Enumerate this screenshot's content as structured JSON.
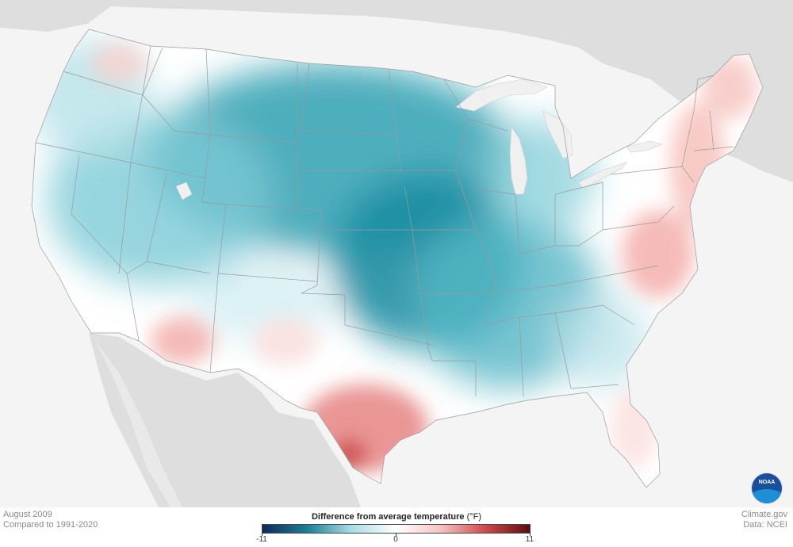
{
  "map": {
    "region": "Contiguous United States",
    "colors": {
      "ocean": "#f4f4f4",
      "land_outside": "#dedede",
      "great_lakes": "#f0f0f0",
      "cool_strong": "#1f8ea0",
      "cool_light": "#a9dbe3",
      "neutral": "#ffffff",
      "warm_light": "#f7cfcc",
      "warm_strong": "#d9585a"
    }
  },
  "footer": {
    "period": "August 2009",
    "baseline": "Compared to 1991-2020",
    "credit_site": "Climate.gov",
    "credit_data": "Data: NCEI"
  },
  "legend": {
    "title": "Difference from average temperature",
    "unit": "(°F)",
    "min_label": "-11",
    "mid_label": "0",
    "max_label": "11",
    "range": [
      -11,
      11
    ],
    "colors": [
      "#0d2a5c",
      "#1a7f95",
      "#a9dde5",
      "#ffffff",
      "#f5c4c2",
      "#cf4a4d",
      "#5a0e0e"
    ]
  },
  "logo": {
    "text": "NOAA"
  }
}
